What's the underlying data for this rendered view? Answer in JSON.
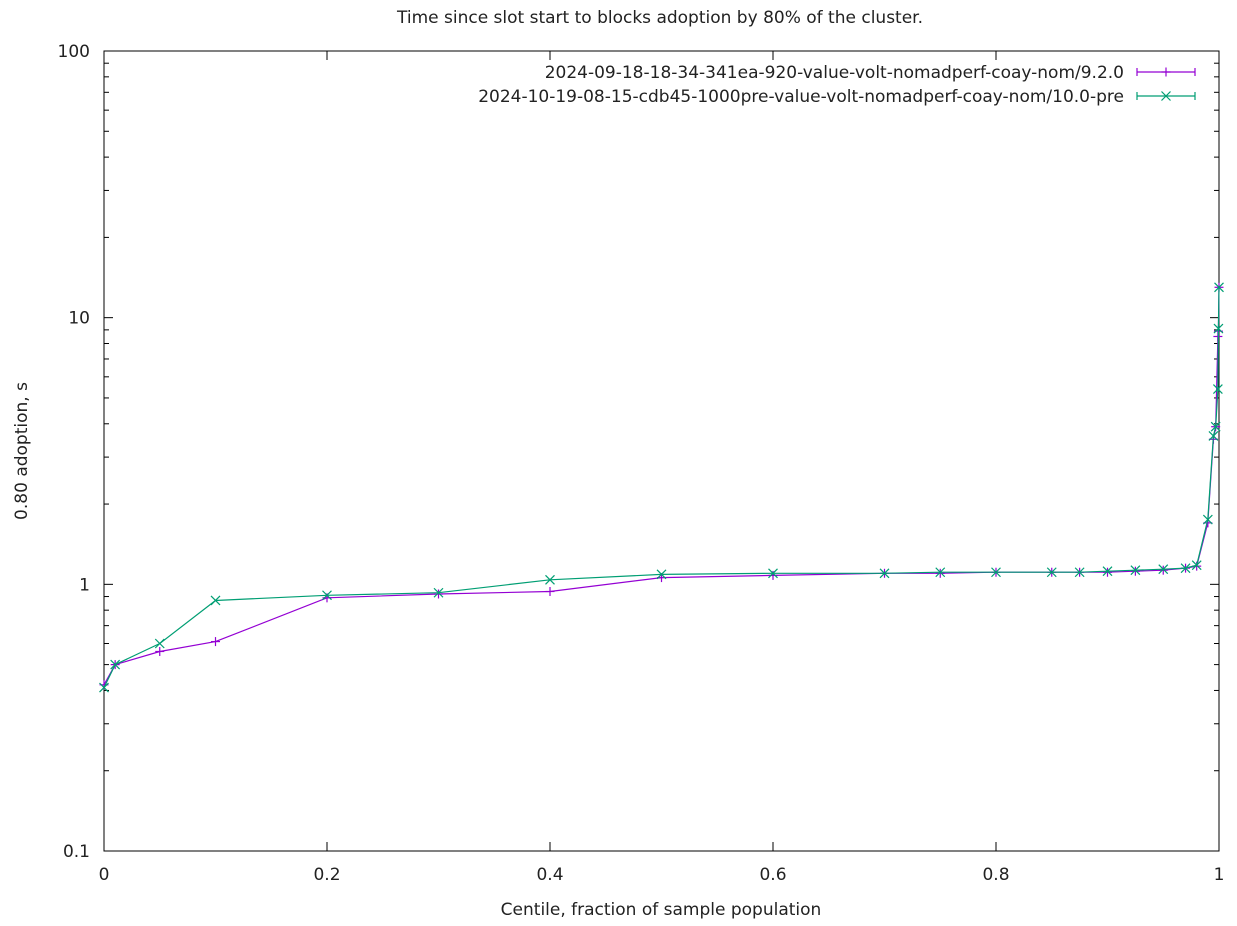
{
  "chart_data": {
    "type": "line",
    "title": "Time since slot start to blocks adoption by 80% of the cluster.",
    "xlabel": "Centile, fraction of sample population",
    "ylabel": "0.80 adoption, s",
    "xlim": [
      0,
      1
    ],
    "ylim": [
      0.1,
      100
    ],
    "y_scale": "log",
    "x_ticks": [
      "0",
      "0.2",
      "0.4",
      "0.6",
      "0.8",
      "1"
    ],
    "y_ticks": [
      "0.1",
      "1",
      "10",
      "100"
    ],
    "legend_position": "top-right",
    "grid": false,
    "series": [
      {
        "name": "2024-09-18-18-34-341ea-920-value-volt-nomadperf-coay-nom/9.2.0",
        "color": "#9400d3",
        "marker": "plus",
        "x": [
          0,
          0.01,
          0.05,
          0.1,
          0.2,
          0.3,
          0.4,
          0.5,
          0.6,
          0.7,
          0.75,
          0.8,
          0.85,
          0.875,
          0.9,
          0.925,
          0.95,
          0.97,
          0.98,
          0.99,
          0.995,
          0.997,
          0.999,
          0.9995,
          1
        ],
        "y": [
          0.42,
          0.5,
          0.56,
          0.61,
          0.89,
          0.92,
          0.94,
          1.06,
          1.08,
          1.1,
          1.1,
          1.11,
          1.11,
          1.11,
          1.11,
          1.12,
          1.13,
          1.15,
          1.17,
          1.7,
          3.5,
          3.9,
          8.5,
          8.9,
          13.0
        ]
      },
      {
        "name": "2024-10-19-08-15-cdb45-1000pre-value-volt-nomadperf-coay-nom/10.0-pre",
        "color": "#009e73",
        "marker": "cross",
        "x": [
          0,
          0.01,
          0.05,
          0.1,
          0.2,
          0.3,
          0.4,
          0.5,
          0.6,
          0.7,
          0.75,
          0.8,
          0.85,
          0.875,
          0.9,
          0.925,
          0.95,
          0.97,
          0.98,
          0.99,
          0.995,
          0.997,
          0.999,
          0.9995,
          1
        ],
        "y": [
          0.41,
          0.5,
          0.6,
          0.87,
          0.91,
          0.93,
          1.04,
          1.09,
          1.1,
          1.1,
          1.11,
          1.11,
          1.11,
          1.11,
          1.12,
          1.13,
          1.14,
          1.15,
          1.18,
          1.75,
          3.6,
          3.9,
          5.4,
          9.1,
          13.0
        ]
      }
    ]
  }
}
